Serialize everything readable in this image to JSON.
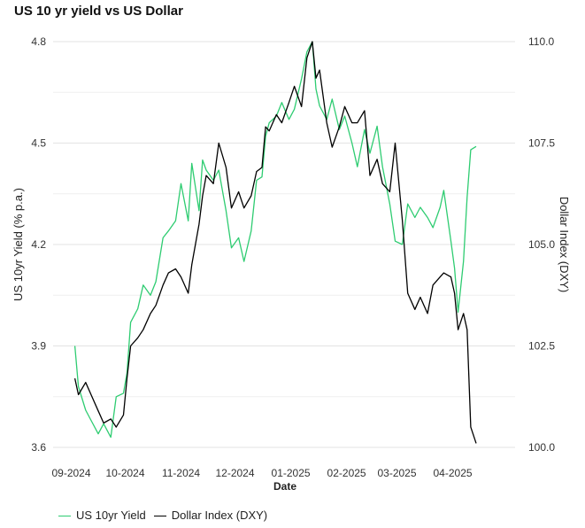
{
  "chart_data": {
    "type": "line",
    "title": "US 10 yr yield vs US Dollar",
    "xlabel": "Date",
    "ylabel_left": "US 10yr Yield (% p.a.)",
    "ylabel_right": "Dollar Index (DXY)",
    "x_ticks": [
      "09-2024",
      "10-2024",
      "11-2024",
      "12-2024",
      "01-2025",
      "02-2025",
      "03-2025",
      "04-2025"
    ],
    "y_left_ticks": [
      "3.6",
      "3.9",
      "4.2",
      "4.5",
      "4.8"
    ],
    "y_right_ticks": [
      "100.0",
      "102.5",
      "105.0",
      "107.5",
      "110.0"
    ],
    "y_left_range": [
      3.6,
      4.8
    ],
    "y_right_range": [
      100.0,
      110.0
    ],
    "grid": "horizontal",
    "legend_position": "bottom-left",
    "series": [
      {
        "name": "US 10yr Yield",
        "axis": "left",
        "color": "#2ecc71",
        "points": [
          [
            "2024-09-03",
            3.9
          ],
          [
            "2024-09-05",
            3.78
          ],
          [
            "2024-09-09",
            3.71
          ],
          [
            "2024-09-12",
            3.68
          ],
          [
            "2024-09-16",
            3.64
          ],
          [
            "2024-09-19",
            3.67
          ],
          [
            "2024-09-23",
            3.63
          ],
          [
            "2024-09-26",
            3.75
          ],
          [
            "2024-09-30",
            3.76
          ],
          [
            "2024-10-02",
            3.82
          ],
          [
            "2024-10-04",
            3.97
          ],
          [
            "2024-10-08",
            4.01
          ],
          [
            "2024-10-11",
            4.08
          ],
          [
            "2024-10-15",
            4.05
          ],
          [
            "2024-10-18",
            4.09
          ],
          [
            "2024-10-22",
            4.22
          ],
          [
            "2024-10-25",
            4.24
          ],
          [
            "2024-10-29",
            4.27
          ],
          [
            "2024-11-01",
            4.38
          ],
          [
            "2024-11-05",
            4.27
          ],
          [
            "2024-11-07",
            4.44
          ],
          [
            "2024-11-11",
            4.3
          ],
          [
            "2024-11-13",
            4.45
          ],
          [
            "2024-11-15",
            4.42
          ],
          [
            "2024-11-19",
            4.39
          ],
          [
            "2024-11-22",
            4.42
          ],
          [
            "2024-11-26",
            4.3
          ],
          [
            "2024-11-29",
            4.19
          ],
          [
            "2024-12-03",
            4.22
          ],
          [
            "2024-12-06",
            4.15
          ],
          [
            "2024-12-10",
            4.24
          ],
          [
            "2024-12-13",
            4.39
          ],
          [
            "2024-12-16",
            4.4
          ],
          [
            "2024-12-18",
            4.52
          ],
          [
            "2024-12-20",
            4.56
          ],
          [
            "2024-12-24",
            4.58
          ],
          [
            "2024-12-27",
            4.62
          ],
          [
            "2024-12-31",
            4.57
          ],
          [
            "2025-01-03",
            4.6
          ],
          [
            "2025-01-07",
            4.69
          ],
          [
            "2025-01-10",
            4.77
          ],
          [
            "2025-01-13",
            4.8
          ],
          [
            "2025-01-15",
            4.66
          ],
          [
            "2025-01-17",
            4.61
          ],
          [
            "2025-01-21",
            4.57
          ],
          [
            "2025-01-24",
            4.63
          ],
          [
            "2025-01-28",
            4.54
          ],
          [
            "2025-01-31",
            4.58
          ],
          [
            "2025-02-04",
            4.5
          ],
          [
            "2025-02-07",
            4.43
          ],
          [
            "2025-02-11",
            4.54
          ],
          [
            "2025-02-14",
            4.47
          ],
          [
            "2025-02-18",
            4.55
          ],
          [
            "2025-02-21",
            4.43
          ],
          [
            "2025-02-25",
            4.32
          ],
          [
            "2025-02-28",
            4.21
          ],
          [
            "2025-03-04",
            4.2
          ],
          [
            "2025-03-07",
            4.32
          ],
          [
            "2025-03-11",
            4.28
          ],
          [
            "2025-03-14",
            4.31
          ],
          [
            "2025-03-18",
            4.28
          ],
          [
            "2025-03-21",
            4.25
          ],
          [
            "2025-03-25",
            4.31
          ],
          [
            "2025-03-27",
            4.36
          ],
          [
            "2025-03-31",
            4.21
          ],
          [
            "2025-04-02",
            4.13
          ],
          [
            "2025-04-04",
            4.0
          ],
          [
            "2025-04-07",
            4.15
          ],
          [
            "2025-04-09",
            4.34
          ],
          [
            "2025-04-11",
            4.48
          ],
          [
            "2025-04-14",
            4.49
          ]
        ]
      },
      {
        "name": "Dollar Index (DXY)",
        "axis": "right",
        "color": "#000000",
        "points": [
          [
            "2024-09-03",
            101.7
          ],
          [
            "2024-09-05",
            101.3
          ],
          [
            "2024-09-09",
            101.6
          ],
          [
            "2024-09-12",
            101.3
          ],
          [
            "2024-09-16",
            100.9
          ],
          [
            "2024-09-19",
            100.6
          ],
          [
            "2024-09-23",
            100.7
          ],
          [
            "2024-09-26",
            100.5
          ],
          [
            "2024-09-30",
            100.8
          ],
          [
            "2024-10-02",
            101.7
          ],
          [
            "2024-10-04",
            102.5
          ],
          [
            "2024-10-08",
            102.7
          ],
          [
            "2024-10-11",
            102.9
          ],
          [
            "2024-10-15",
            103.3
          ],
          [
            "2024-10-18",
            103.5
          ],
          [
            "2024-10-22",
            104.0
          ],
          [
            "2024-10-25",
            104.3
          ],
          [
            "2024-10-29",
            104.4
          ],
          [
            "2024-11-01",
            104.2
          ],
          [
            "2024-11-05",
            103.8
          ],
          [
            "2024-11-07",
            104.5
          ],
          [
            "2024-11-11",
            105.5
          ],
          [
            "2024-11-13",
            106.2
          ],
          [
            "2024-11-15",
            106.7
          ],
          [
            "2024-11-19",
            106.5
          ],
          [
            "2024-11-22",
            107.5
          ],
          [
            "2024-11-26",
            106.9
          ],
          [
            "2024-11-29",
            105.9
          ],
          [
            "2024-12-03",
            106.3
          ],
          [
            "2024-12-06",
            105.9
          ],
          [
            "2024-12-10",
            106.2
          ],
          [
            "2024-12-13",
            106.8
          ],
          [
            "2024-12-16",
            106.9
          ],
          [
            "2024-12-18",
            107.9
          ],
          [
            "2024-12-20",
            107.8
          ],
          [
            "2024-12-24",
            108.2
          ],
          [
            "2024-12-27",
            108.0
          ],
          [
            "2024-12-31",
            108.5
          ],
          [
            "2025-01-03",
            108.9
          ],
          [
            "2025-01-07",
            108.4
          ],
          [
            "2025-01-10",
            109.6
          ],
          [
            "2025-01-13",
            110.0
          ],
          [
            "2025-01-15",
            109.1
          ],
          [
            "2025-01-17",
            109.3
          ],
          [
            "2025-01-21",
            108.0
          ],
          [
            "2025-01-24",
            107.4
          ],
          [
            "2025-01-28",
            107.9
          ],
          [
            "2025-01-31",
            108.4
          ],
          [
            "2025-02-04",
            108.0
          ],
          [
            "2025-02-07",
            108.0
          ],
          [
            "2025-02-11",
            108.3
          ],
          [
            "2025-02-14",
            106.7
          ],
          [
            "2025-02-18",
            107.1
          ],
          [
            "2025-02-21",
            106.5
          ],
          [
            "2025-02-25",
            106.3
          ],
          [
            "2025-02-28",
            107.5
          ],
          [
            "2025-03-04",
            105.6
          ],
          [
            "2025-03-07",
            103.8
          ],
          [
            "2025-03-11",
            103.4
          ],
          [
            "2025-03-14",
            103.7
          ],
          [
            "2025-03-18",
            103.3
          ],
          [
            "2025-03-21",
            104.0
          ],
          [
            "2025-03-25",
            104.2
          ],
          [
            "2025-03-27",
            104.3
          ],
          [
            "2025-03-31",
            104.2
          ],
          [
            "2025-04-02",
            103.8
          ],
          [
            "2025-04-04",
            102.9
          ],
          [
            "2025-04-07",
            103.3
          ],
          [
            "2025-04-09",
            102.9
          ],
          [
            "2025-04-11",
            100.5
          ],
          [
            "2025-04-14",
            100.1
          ]
        ]
      }
    ]
  }
}
